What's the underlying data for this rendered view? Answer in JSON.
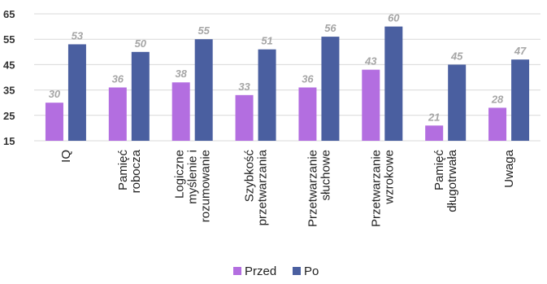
{
  "chart_data": {
    "type": "bar",
    "categories": [
      [
        "IQ"
      ],
      [
        "Pamięć",
        "robocza"
      ],
      [
        "Logiczne",
        "myślenie i",
        "rozumowanie"
      ],
      [
        "Szybkość",
        "przetwarzania"
      ],
      [
        "Przetwarzanie",
        "słuchowe"
      ],
      [
        "Przetwarzanie",
        "wzrokowe"
      ],
      [
        "Pamięć",
        "długotrwała"
      ],
      [
        "Uwaga"
      ]
    ],
    "series": [
      {
        "name": "Przed",
        "values": [
          30,
          36,
          38,
          33,
          36,
          43,
          21,
          28
        ],
        "color": "#b36ee0"
      },
      {
        "name": "Po",
        "values": [
          53,
          50,
          55,
          51,
          56,
          60,
          45,
          47
        ],
        "color": "#4a5fa0"
      }
    ],
    "yticks": [
      15,
      25,
      35,
      45,
      55,
      65
    ],
    "ylim": [
      15,
      65
    ],
    "grid": true,
    "legend_position": "bottom",
    "colors": {
      "grid": "#d9d9d9",
      "data_label": "#a6a6a6"
    }
  }
}
